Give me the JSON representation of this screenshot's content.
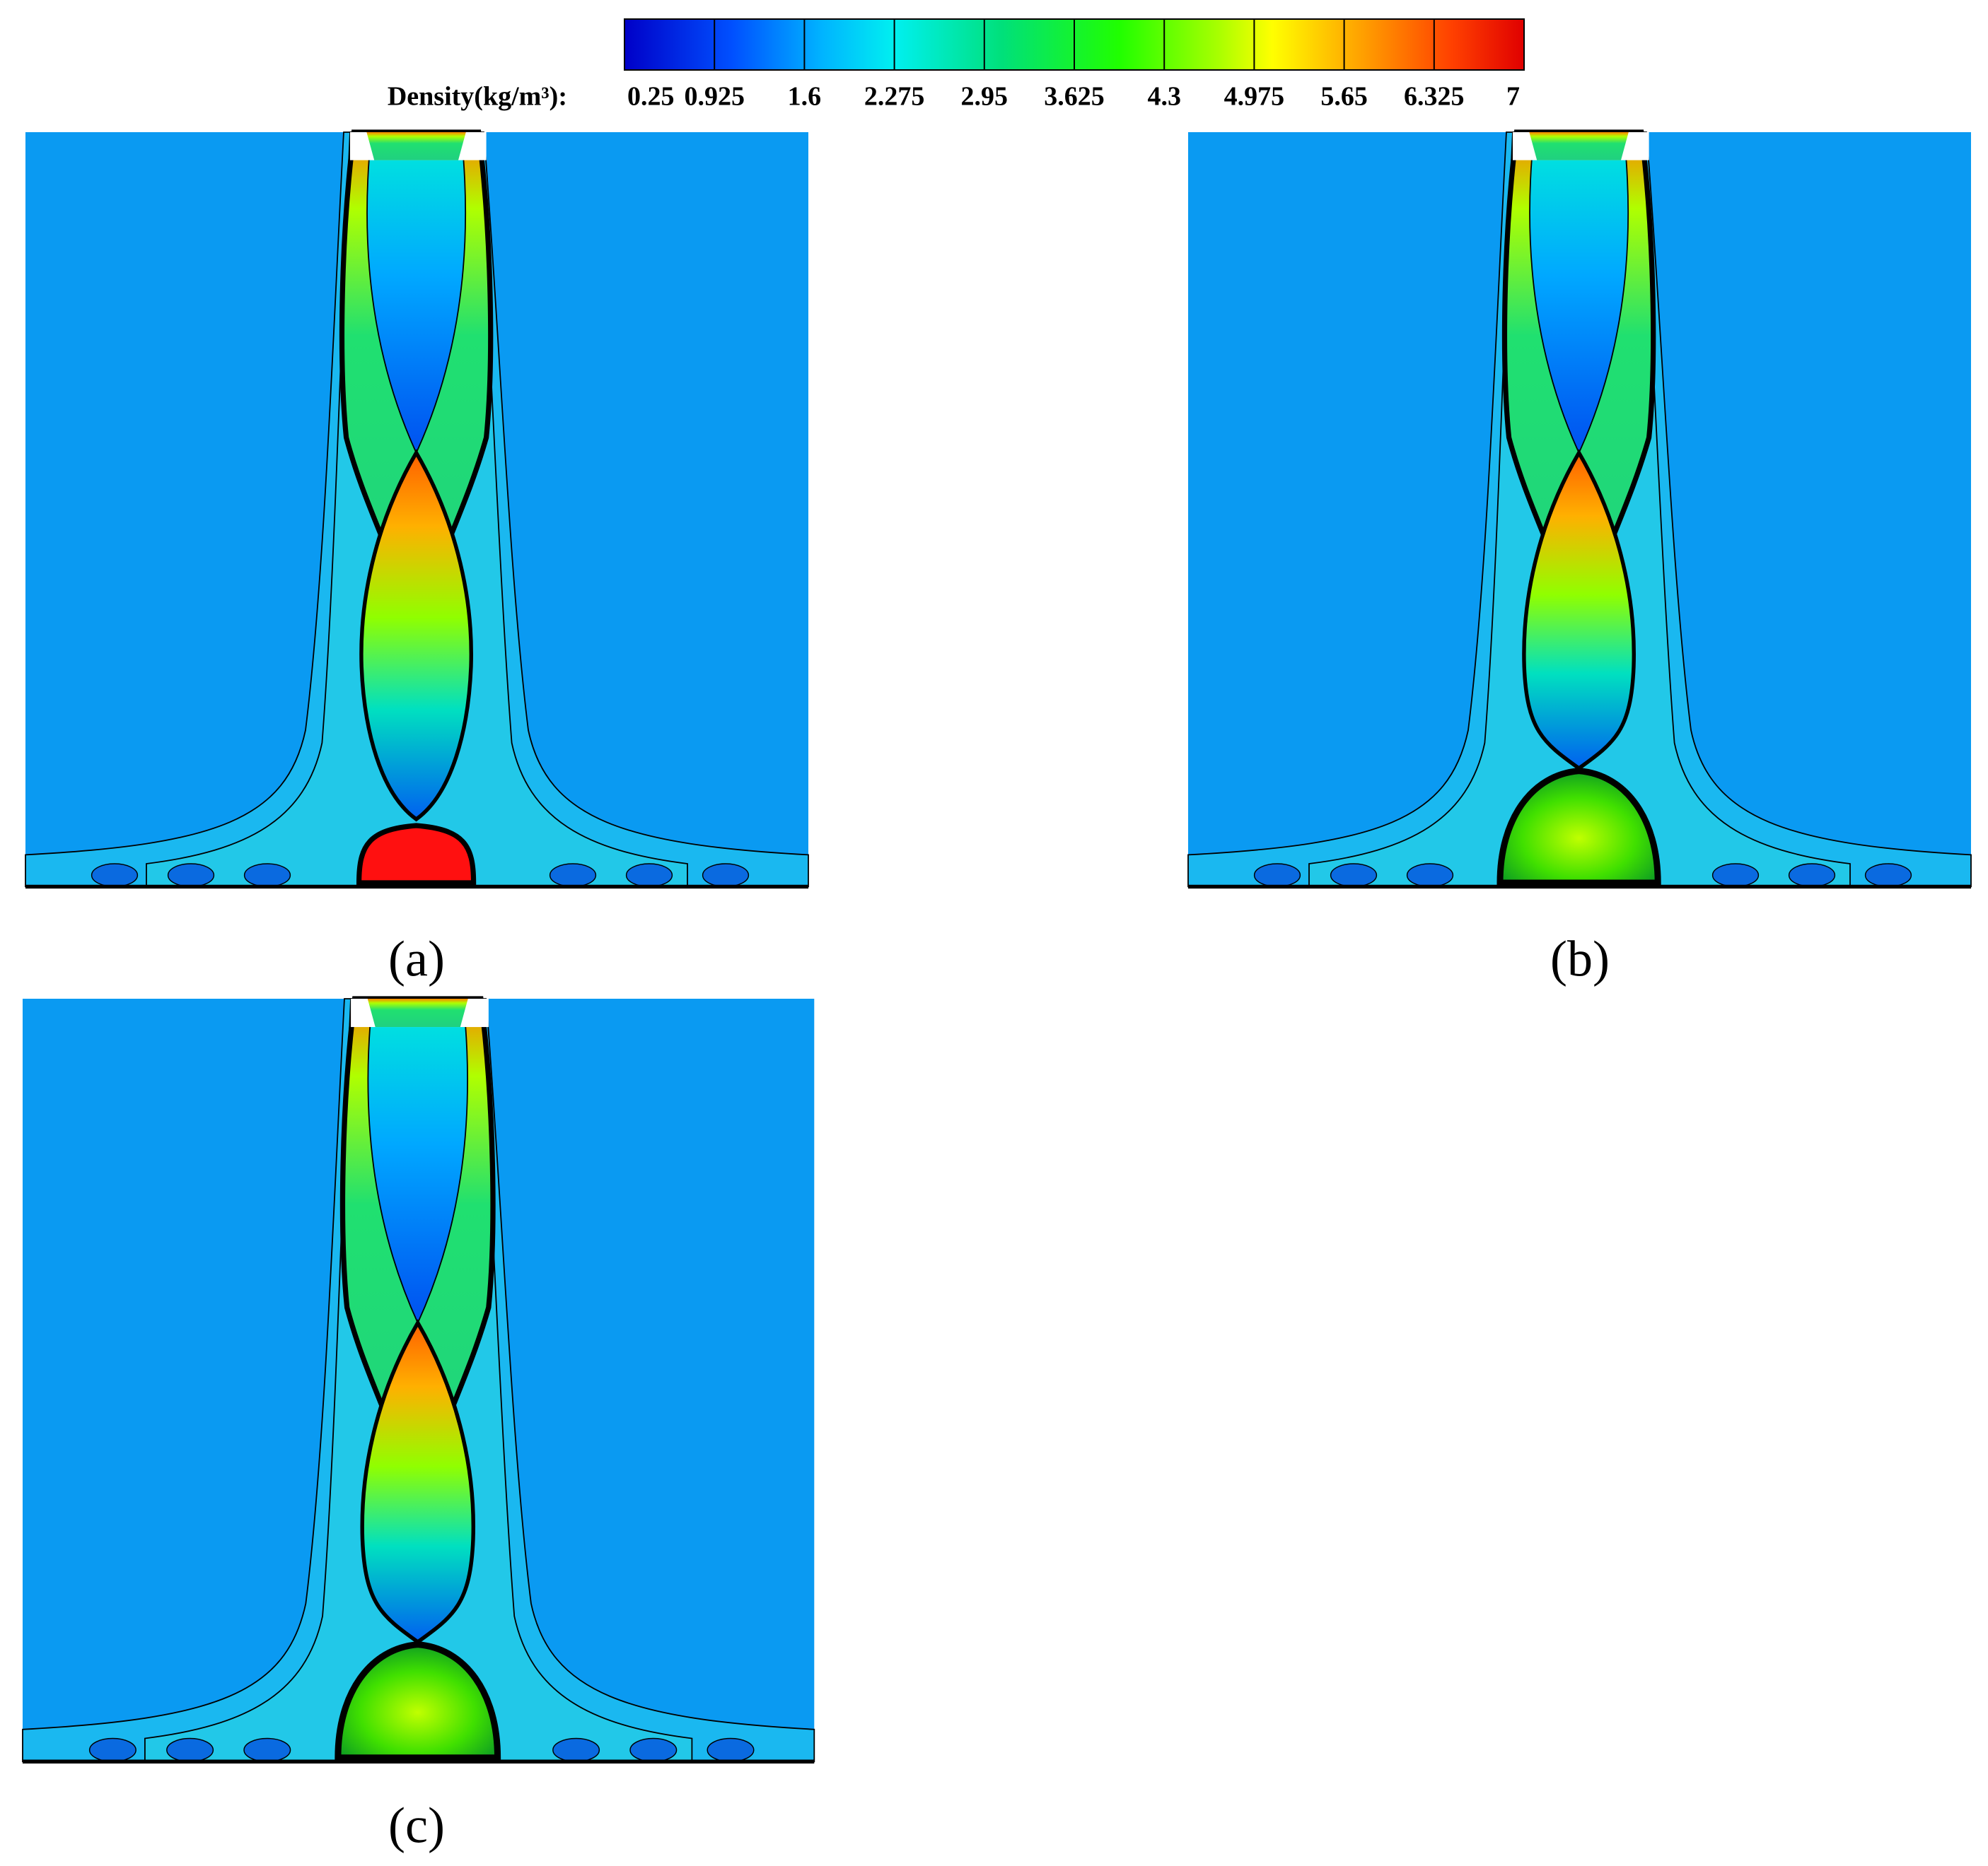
{
  "colorbar": {
    "label": "Density(kg/m³):",
    "ticks": [
      0.25,
      0.925,
      1.6,
      2.275,
      2.95,
      3.625,
      4.3,
      4.975,
      5.65,
      6.325,
      7
    ]
  },
  "panels": [
    {
      "label": "(a)"
    },
    {
      "label": "(b)"
    },
    {
      "label": "(c)"
    }
  ]
}
